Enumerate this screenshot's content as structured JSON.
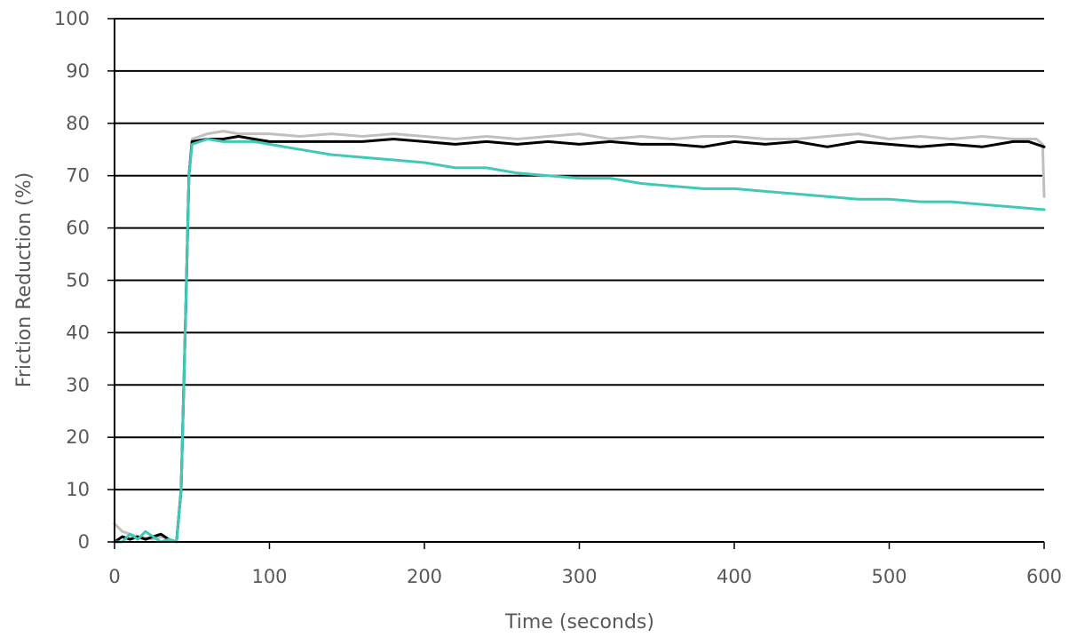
{
  "chart_data": {
    "type": "line",
    "title": "",
    "xlabel": "Time (seconds)",
    "ylabel": "Friction Reduction (%)",
    "xlim": [
      0,
      600
    ],
    "ylim": [
      0,
      100
    ],
    "x_ticks": [
      0,
      100,
      200,
      300,
      400,
      500,
      600
    ],
    "y_ticks": [
      0,
      10,
      20,
      30,
      40,
      50,
      60,
      70,
      80,
      90,
      100
    ],
    "grid": "horizontal",
    "legend": "none",
    "series": [
      {
        "color": "#c0c0c0",
        "points": [
          [
            0,
            3.5
          ],
          [
            5,
            2
          ],
          [
            10,
            1.5
          ],
          [
            15,
            1
          ],
          [
            20,
            0.8
          ],
          [
            25,
            0.5
          ],
          [
            30,
            1
          ],
          [
            35,
            0.5
          ],
          [
            40,
            0
          ],
          [
            43,
            10
          ],
          [
            46,
            45
          ],
          [
            48,
            70
          ],
          [
            50,
            77
          ],
          [
            60,
            78
          ],
          [
            70,
            78.5
          ],
          [
            80,
            78
          ],
          [
            90,
            78
          ],
          [
            100,
            78
          ],
          [
            120,
            77.5
          ],
          [
            140,
            78
          ],
          [
            160,
            77.5
          ],
          [
            180,
            78
          ],
          [
            200,
            77.5
          ],
          [
            220,
            77
          ],
          [
            240,
            77.5
          ],
          [
            260,
            77
          ],
          [
            280,
            77.5
          ],
          [
            300,
            78
          ],
          [
            320,
            77
          ],
          [
            340,
            77.5
          ],
          [
            360,
            77
          ],
          [
            380,
            77.5
          ],
          [
            400,
            77.5
          ],
          [
            420,
            77
          ],
          [
            440,
            77
          ],
          [
            460,
            77.5
          ],
          [
            480,
            78
          ],
          [
            500,
            77
          ],
          [
            520,
            77.5
          ],
          [
            540,
            77
          ],
          [
            560,
            77.5
          ],
          [
            580,
            77
          ],
          [
            595,
            77
          ],
          [
            599,
            76
          ],
          [
            600,
            66
          ]
        ]
      },
      {
        "color": "#000000",
        "points": [
          [
            0,
            0
          ],
          [
            5,
            1
          ],
          [
            10,
            0.5
          ],
          [
            15,
            1
          ],
          [
            20,
            0.5
          ],
          [
            25,
            1
          ],
          [
            30,
            1.5
          ],
          [
            35,
            0.5
          ],
          [
            40,
            0
          ],
          [
            43,
            10
          ],
          [
            46,
            45
          ],
          [
            48,
            70
          ],
          [
            50,
            76.5
          ],
          [
            60,
            77
          ],
          [
            70,
            77
          ],
          [
            80,
            77.5
          ],
          [
            90,
            77
          ],
          [
            100,
            76.5
          ],
          [
            120,
            76.5
          ],
          [
            140,
            76.5
          ],
          [
            160,
            76.5
          ],
          [
            180,
            77
          ],
          [
            200,
            76.5
          ],
          [
            220,
            76
          ],
          [
            240,
            76.5
          ],
          [
            260,
            76
          ],
          [
            280,
            76.5
          ],
          [
            300,
            76
          ],
          [
            320,
            76.5
          ],
          [
            340,
            76
          ],
          [
            360,
            76
          ],
          [
            380,
            75.5
          ],
          [
            400,
            76.5
          ],
          [
            420,
            76
          ],
          [
            440,
            76.5
          ],
          [
            460,
            75.5
          ],
          [
            480,
            76.5
          ],
          [
            500,
            76
          ],
          [
            520,
            75.5
          ],
          [
            540,
            76
          ],
          [
            560,
            75.5
          ],
          [
            580,
            76.5
          ],
          [
            590,
            76.5
          ],
          [
            600,
            75.5
          ]
        ]
      },
      {
        "color": "#40c8b8",
        "points": [
          [
            0,
            0
          ],
          [
            5,
            0
          ],
          [
            10,
            1.5
          ],
          [
            15,
            0.5
          ],
          [
            20,
            2
          ],
          [
            25,
            1
          ],
          [
            30,
            0
          ],
          [
            35,
            0.5
          ],
          [
            40,
            0
          ],
          [
            43,
            10
          ],
          [
            46,
            45
          ],
          [
            48,
            70
          ],
          [
            50,
            76
          ],
          [
            60,
            77
          ],
          [
            70,
            76.5
          ],
          [
            80,
            76.5
          ],
          [
            90,
            76.5
          ],
          [
            100,
            76
          ],
          [
            120,
            75
          ],
          [
            140,
            74
          ],
          [
            160,
            73.5
          ],
          [
            180,
            73
          ],
          [
            200,
            72.5
          ],
          [
            220,
            71.5
          ],
          [
            240,
            71.5
          ],
          [
            260,
            70.5
          ],
          [
            280,
            70
          ],
          [
            300,
            69.5
          ],
          [
            320,
            69.5
          ],
          [
            340,
            68.5
          ],
          [
            360,
            68
          ],
          [
            380,
            67.5
          ],
          [
            400,
            67.5
          ],
          [
            420,
            67
          ],
          [
            440,
            66.5
          ],
          [
            460,
            66
          ],
          [
            480,
            65.5
          ],
          [
            500,
            65.5
          ],
          [
            520,
            65
          ],
          [
            540,
            65
          ],
          [
            560,
            64.5
          ],
          [
            580,
            64
          ],
          [
            600,
            63.5
          ]
        ]
      }
    ]
  }
}
